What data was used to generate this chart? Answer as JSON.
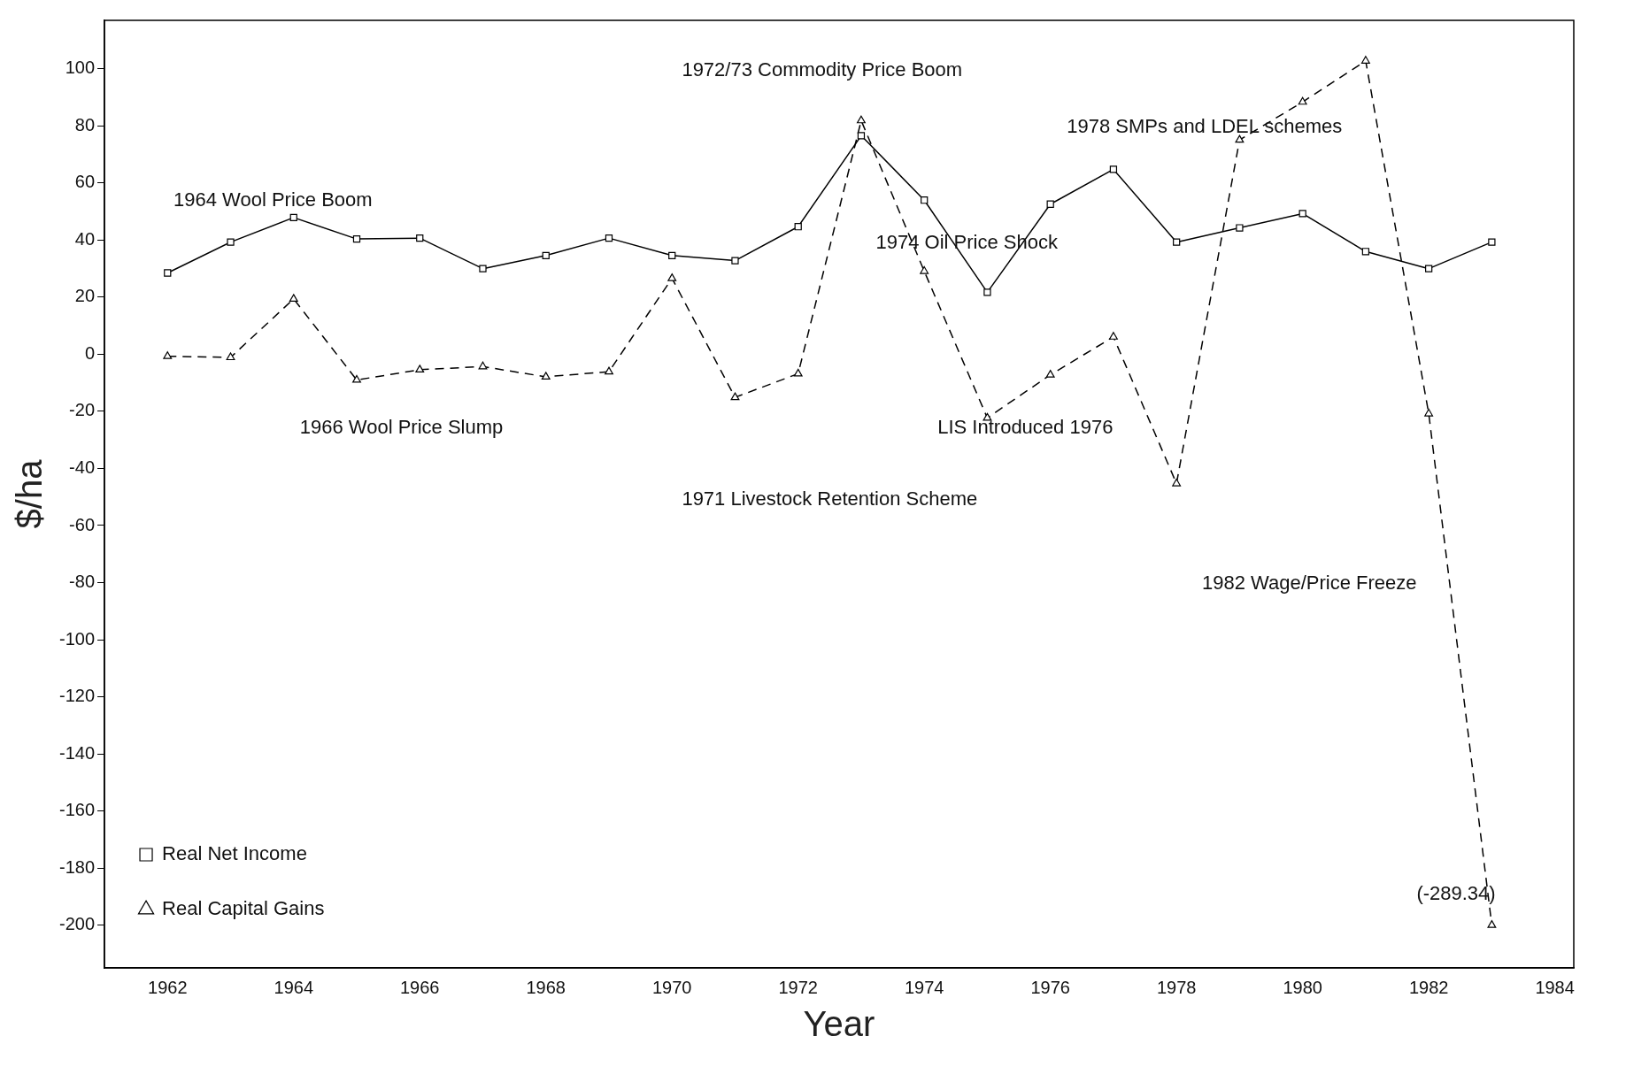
{
  "chart_data": {
    "type": "line",
    "xlabel": "Year",
    "ylabel": "$/ha",
    "x": [
      1962,
      1963,
      1964,
      1965,
      1966,
      1967,
      1968,
      1969,
      1970,
      1971,
      1972,
      1973,
      1974,
      1975,
      1976,
      1977,
      1978,
      1979,
      1980,
      1981,
      1982,
      1983
    ],
    "series": [
      {
        "name": "Real Net Income",
        "color": "#000000",
        "line_style": "solid",
        "marker": "square",
        "values": [
          28.5,
          39.3,
          47.9,
          40.4,
          40.7,
          30,
          34.6,
          40.7,
          34.6,
          32.8,
          44.7,
          76.6,
          54,
          21.7,
          52.6,
          64.8,
          39.3,
          44.3,
          49.3,
          36,
          30,
          39.3
        ]
      },
      {
        "name": "Real Capital Gains",
        "color": "#000000",
        "line_style": "dashed",
        "marker": "triangle",
        "values": [
          -0.7,
          -1.1,
          19.4,
          -9,
          -5.4,
          -4.3,
          -7.9,
          -6.1,
          26.6,
          -15.1,
          -6.8,
          81.9,
          29.1,
          -22.3,
          -7.2,
          6.1,
          -45.3,
          75.1,
          88.4,
          102.8,
          -20.8,
          -200
        ]
      }
    ],
    "xlim": [
      1961,
      1984.3
    ],
    "xticks": [
      1962,
      1964,
      1966,
      1968,
      1970,
      1972,
      1974,
      1976,
      1978,
      1980,
      1982,
      1984
    ],
    "ylim": [
      -215,
      117
    ],
    "yticks": [
      -200,
      -180,
      -160,
      -140,
      -120,
      -100,
      -80,
      -60,
      -40,
      -20,
      0,
      20,
      40,
      60,
      80,
      100
    ],
    "grid": false,
    "legend": "bottom left",
    "annotations": [
      "1972/73 Commodity Price Boom",
      "1978 SMPs and LDEL schemes",
      "1964 Wool Price Boom",
      "1974 Oil Price Shock",
      "1966 Wool Price Slump",
      "LIS Introduced 1976",
      "1971 Livestock Retention Scheme",
      "1982 Wage/Price Freeze",
      "(-289.34)"
    ]
  }
}
